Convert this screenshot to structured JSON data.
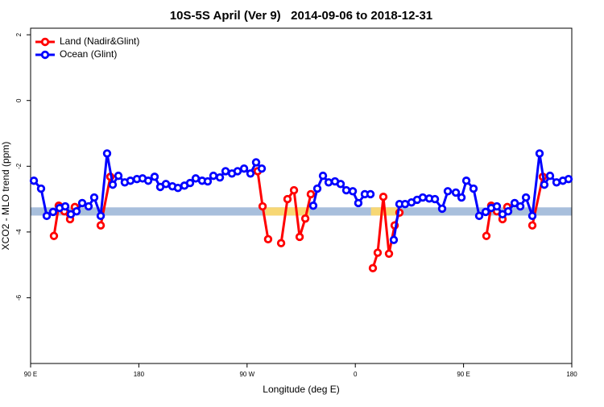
{
  "chart_data": {
    "type": "line",
    "title": "10S-5S April (Ver 9)   2014-09-06 to 2018-12-31",
    "x_label": "Longitude (deg E)",
    "y_label": "XCO2 - MLO trend (ppm)",
    "xlim": [
      90,
      540
    ],
    "xticks": [
      {
        "value": 90,
        "label": "90 E"
      },
      180,
      {
        "value": 270,
        "label": "90 W"
      },
      {
        "value": 360,
        "label": "0"
      },
      {
        "value": 450,
        "label": "90 E"
      },
      {
        "value": 540,
        "label": "180"
      }
    ],
    "ylim": [
      -8,
      2.2
    ],
    "yticks": [
      -6,
      -4,
      -2,
      0,
      2
    ],
    "legend": "top-left",
    "band": {
      "ylim": [
        -3.5,
        -3.25
      ],
      "color": "#a8bfdc"
    },
    "band_highlights": {
      "color": "#f7d774",
      "ranges": [
        [
          285,
          322
        ],
        [
          373,
          396
        ]
      ]
    },
    "series": [
      {
        "name": "Land (Nadir&Glint)",
        "color": "#ff0000",
        "x": [
          109.4,
          113.4,
          118.1,
          122.8,
          126.8,
          null,
          148.3,
          156.3,
          null,
          278.8,
          282.9,
          287.5,
          null,
          298.3,
          303.6,
          309,
          313.7,
          318.4,
          323,
          null,
          374.6,
          378.6,
          383.3,
          388,
          392.7,
          396.7,
          null,
          469,
          473,
          477.7,
          482.4,
          486.4,
          null,
          507.2,
          515.9
        ],
        "values": [
          -4.12,
          -3.2,
          -3.37,
          -3.61,
          -3.24,
          null,
          -3.8,
          -2.32,
          null,
          -2.15,
          -3.22,
          -4.22,
          null,
          -4.34,
          -3.0,
          -2.73,
          -4.15,
          -3.59,
          -2.85,
          null,
          -5.1,
          -4.63,
          -2.93,
          -4.66,
          -3.8,
          -3.41,
          null,
          -4.12,
          -3.2,
          -3.37,
          -3.61,
          -3.24,
          null,
          -3.8,
          -2.32
        ]
      },
      {
        "name": "Ocean (Glint)",
        "color": "#0000ff",
        "x": [
          92.7,
          98.7,
          103.4,
          108.7,
          114.1,
          118.8,
          123.5,
          128.2,
          132.9,
          138.2,
          142.9,
          148.3,
          153.6,
          158.3,
          163,
          168.3,
          173,
          178.4,
          183.1,
          187.8,
          193.1,
          197.8,
          202.5,
          207.9,
          212.5,
          217.9,
          222.6,
          227.3,
          232.6,
          237.3,
          242,
          247.4,
          252.1,
          257.4,
          262.1,
          267.5,
          272.8,
          277.5,
          282.2,
          null,
          325,
          328.4,
          333.1,
          337.8,
          343.1,
          347.8,
          352.5,
          357.9,
          362.5,
          367.9,
          372.6,
          null,
          392,
          396.7,
          401.4,
          406.7,
          411.4,
          416.1,
          421.5,
          426.2,
          432.2,
          436.9,
          443.6,
          448.3,
          452.3,
          458.3,
          463,
          468.4,
          473,
          477.7,
          482.4,
          487.1,
          492.5,
          497.2,
          501.9,
          507.2,
          513.2,
          517.2,
          521.9,
          527.3,
          532.6,
          537.3
        ],
        "values": [
          -2.44,
          -2.68,
          -3.51,
          -3.39,
          -3.27,
          -3.22,
          -3.46,
          -3.37,
          -3.12,
          -3.22,
          -2.95,
          -3.51,
          -1.61,
          -2.56,
          -2.29,
          -2.49,
          -2.44,
          -2.39,
          -2.37,
          -2.44,
          -2.32,
          -2.63,
          -2.54,
          -2.61,
          -2.66,
          -2.59,
          -2.51,
          -2.37,
          -2.44,
          -2.46,
          -2.29,
          -2.34,
          -2.15,
          -2.22,
          -2.15,
          -2.07,
          -2.22,
          -1.88,
          -2.07,
          null,
          -3.2,
          -2.68,
          -2.29,
          -2.49,
          -2.46,
          -2.54,
          -2.73,
          -2.76,
          -3.12,
          -2.85,
          -2.85,
          null,
          -4.24,
          -3.15,
          -3.15,
          -3.1,
          -3.02,
          -2.95,
          -2.98,
          -3.0,
          -3.29,
          -2.76,
          -2.8,
          -2.95,
          -2.44,
          -2.68,
          -3.51,
          -3.39,
          -3.27,
          -3.22,
          -3.46,
          -3.37,
          -3.12,
          -3.22,
          -2.95,
          -3.51,
          -1.61,
          -2.56,
          -2.29,
          -2.49,
          -2.44,
          -2.39
        ]
      }
    ]
  }
}
